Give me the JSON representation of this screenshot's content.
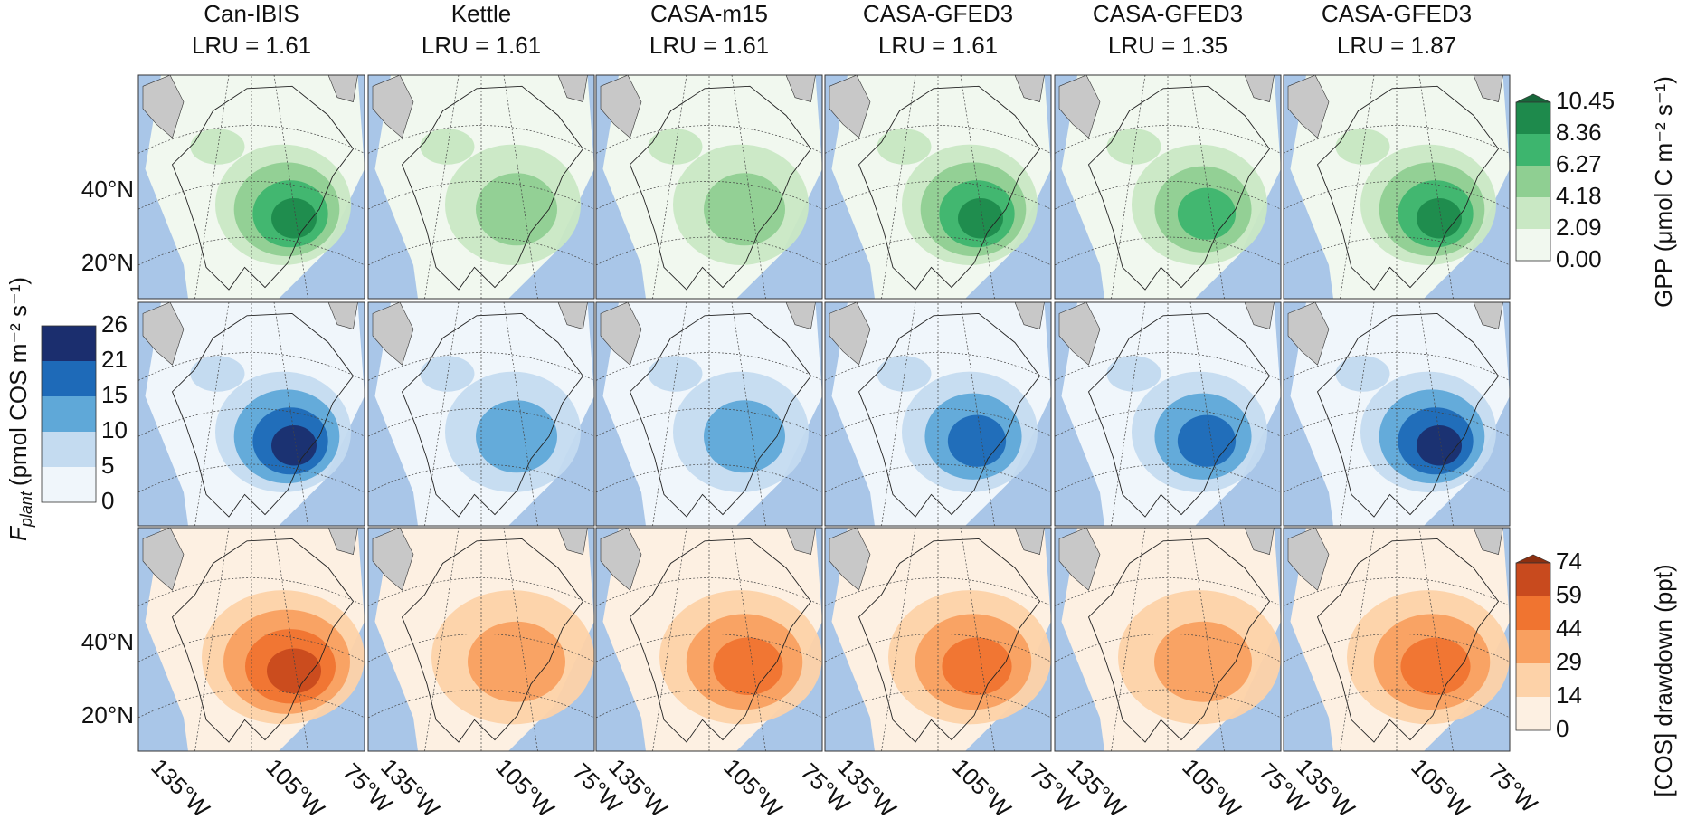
{
  "columns": [
    {
      "model": "Can-IBIS",
      "lru": "LRU = 1.61"
    },
    {
      "model": "Kettle",
      "lru": "LRU = 1.61"
    },
    {
      "model": "CASA-m15",
      "lru": "LRU = 1.61"
    },
    {
      "model": "CASA-GFED3",
      "lru": "LRU = 1.61"
    },
    {
      "model": "CASA-GFED3",
      "lru": "LRU = 1.35"
    },
    {
      "model": "CASA-GFED3",
      "lru": "LRU = 1.87"
    }
  ],
  "lat_labels": [
    "40°N",
    "20°N"
  ],
  "lon_labels": [
    "135°W",
    "105°W",
    "75°W"
  ],
  "colorbars": {
    "gpp": {
      "label": "GPP (μmol C m⁻² s⁻¹)",
      "ticks": [
        "10.45",
        "8.36",
        "6.27",
        "4.18",
        "2.09",
        "0.00"
      ],
      "colors": [
        "#1e8a4c",
        "#3db56e",
        "#8fcf92",
        "#c9e8c4",
        "#f1f8ef"
      ],
      "extend_color": "#17663a"
    },
    "fplant": {
      "label_symbol": "F",
      "label_subscript": "plant",
      "label_units": "(pmol COS  m⁻² s⁻¹)",
      "ticks": [
        "26",
        "21",
        "15",
        "10",
        "5",
        "0"
      ],
      "colors": [
        "#1b2e6e",
        "#1e6ab8",
        "#5fa8d8",
        "#c4dbf0",
        "#f0f6fb"
      ]
    },
    "cos": {
      "label": "[COS] drawdown (ppt)",
      "ticks": [
        "74",
        "59",
        "44",
        "29",
        "14",
        "0"
      ],
      "colors": [
        "#c84a1e",
        "#f07430",
        "#f9a060",
        "#fdd2a8",
        "#fdf0e2"
      ],
      "extend_color": "#8b2f10"
    }
  }
}
